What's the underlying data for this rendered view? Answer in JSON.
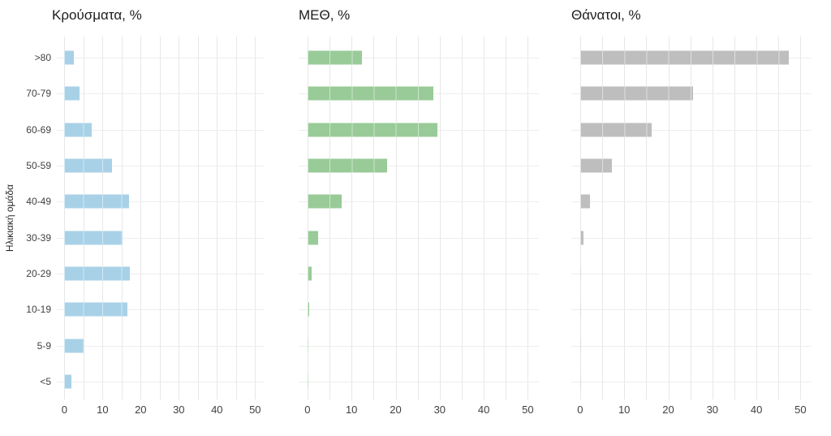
{
  "chart_data": {
    "type": "bar",
    "orientation": "horizontal",
    "ylabel": "Ηλικιακή ομάδα",
    "categories": [
      ">80",
      "70-79",
      "60-69",
      "50-59",
      "40-49",
      "30-39",
      "20-29",
      "10-19",
      "5-9",
      "<5"
    ],
    "series": [
      {
        "name": "Κρούσματα, %",
        "color": "#A8D1E7",
        "values": [
          2.5,
          3.9,
          7.1,
          12.5,
          16.9,
          15.3,
          17.2,
          16.5,
          5.1,
          1.9
        ]
      },
      {
        "name": "ΜΕΘ, %",
        "color": "#99CB98",
        "values": [
          12.3,
          28.5,
          29.5,
          18.0,
          7.7,
          2.5,
          1.0,
          0.3,
          0.2,
          0.2
        ]
      },
      {
        "name": "Θάνατοι, %",
        "color": "#BEBEBE",
        "values": [
          47.3,
          25.7,
          16.3,
          7.2,
          2.2,
          0.7,
          0.1,
          0.1,
          0.1,
          0.1
        ]
      }
    ],
    "xlim": [
      0,
      50
    ],
    "x_ticks": [
      0,
      10,
      20,
      30,
      40,
      50
    ],
    "grid_step": 5,
    "grid": "on",
    "legend_position": "none",
    "background": "#ffffff"
  }
}
